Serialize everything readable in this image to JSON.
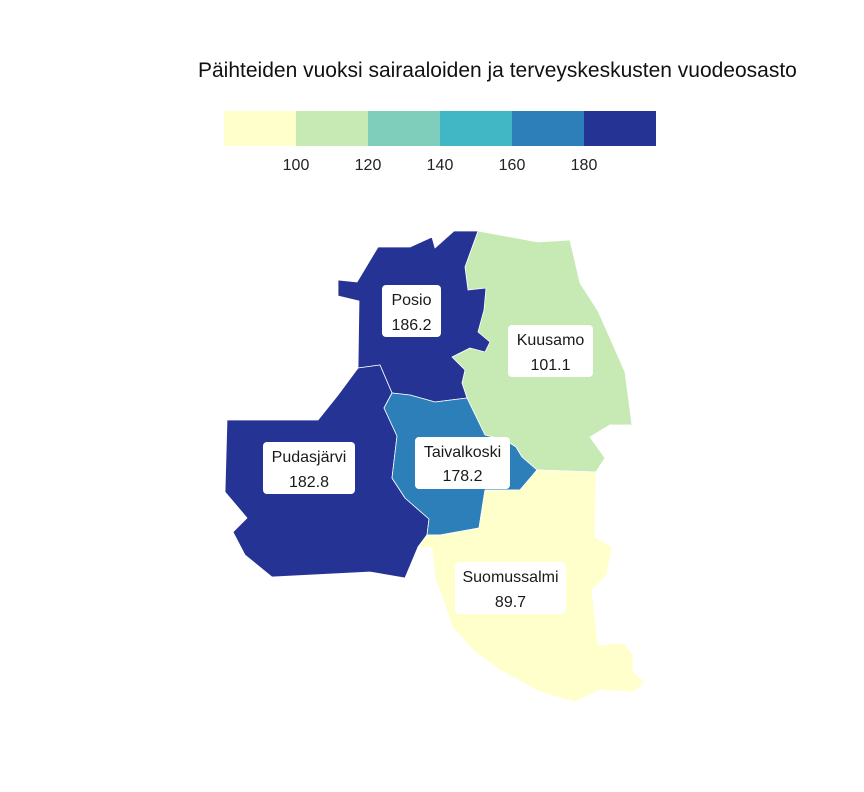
{
  "title": "Päihteiden vuoksi sairaaloiden ja terveyskeskusten vuodeosasto",
  "legend": {
    "bins": [
      {
        "color": "#ffffcc"
      },
      {
        "color": "#c7e9b4"
      },
      {
        "color": "#7fcdbb"
      },
      {
        "color": "#41b6c4"
      },
      {
        "color": "#2c7fb8"
      },
      {
        "color": "#253494"
      }
    ],
    "breaks": [
      "100",
      "120",
      "140",
      "160",
      "180"
    ]
  },
  "regions": [
    {
      "id": "posio",
      "name": "Posio",
      "value": "186.2",
      "color": "#253494"
    },
    {
      "id": "kuusamo",
      "name": "Kuusamo",
      "value": "101.1",
      "color": "#c7e9b4"
    },
    {
      "id": "pudasjarvi",
      "name": "Pudasjärvi",
      "value": "182.8",
      "color": "#253494"
    },
    {
      "id": "taivalkoski",
      "name": "Taivalkoski",
      "value": "178.2",
      "color": "#2c7fb8"
    },
    {
      "id": "suomussalmi",
      "name": "Suomussalmi",
      "value": "89.7",
      "color": "#ffffcc"
    }
  ]
}
